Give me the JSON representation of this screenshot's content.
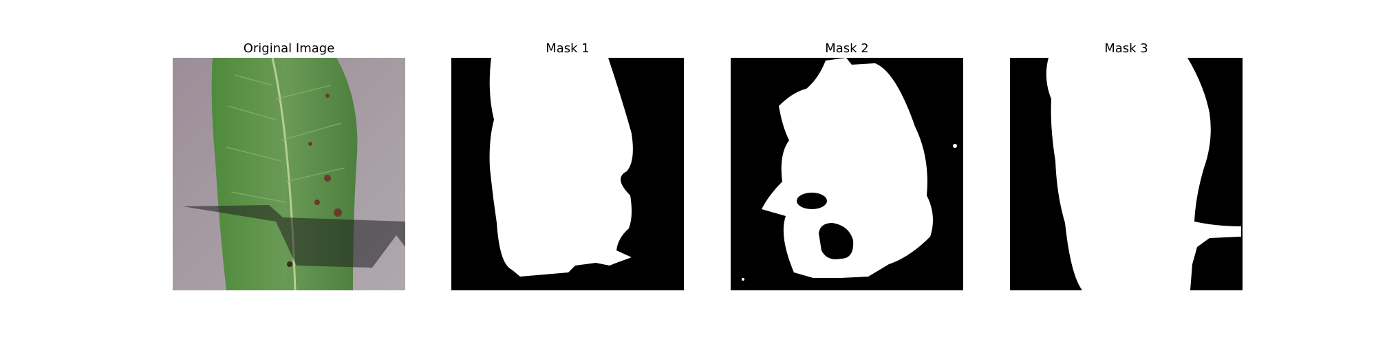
{
  "figure": {
    "panels": [
      {
        "title": "Original Image",
        "kind": "photo"
      },
      {
        "title": "Mask 1",
        "kind": "mask"
      },
      {
        "title": "Mask 2",
        "kind": "mask"
      },
      {
        "title": "Mask 3",
        "kind": "mask"
      }
    ]
  },
  "colors": {
    "background": "#ffffff",
    "mask_fg": "#ffffff",
    "mask_bg": "#000000",
    "leaf": "#5a8c47",
    "surface": "#a59aa2"
  }
}
